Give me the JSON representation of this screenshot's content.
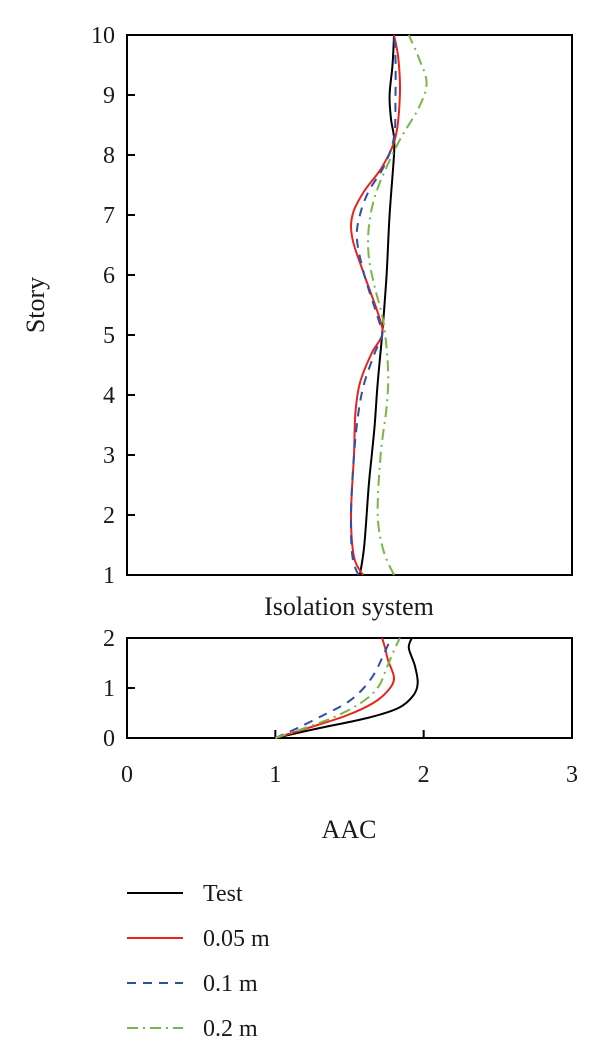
{
  "chart_data": [
    {
      "type": "line",
      "panel": "upper",
      "xlabel": "",
      "ylabel": "Story",
      "xlim": [
        0,
        3
      ],
      "ylim": [
        1,
        10
      ],
      "y_ticks": [
        "1",
        "2",
        "3",
        "4",
        "5",
        "6",
        "7",
        "8",
        "9",
        "10"
      ],
      "grid": false,
      "series": [
        {
          "name": "Test",
          "color": "#000000",
          "dash": "solid",
          "points": [
            [
              1.57,
              1
            ],
            [
              1.6,
              1.5
            ],
            [
              1.63,
              2.5
            ],
            [
              1.65,
              3
            ],
            [
              1.67,
              3.5
            ],
            [
              1.69,
              4.2
            ],
            [
              1.72,
              5
            ],
            [
              1.75,
              6
            ],
            [
              1.77,
              7
            ],
            [
              1.8,
              8
            ],
            [
              1.8,
              8.3
            ],
            [
              1.78,
              8.6
            ],
            [
              1.77,
              9
            ],
            [
              1.79,
              9.5
            ],
            [
              1.8,
              10
            ]
          ]
        },
        {
          "name": "0.05 m",
          "color": "#e8241c",
          "dash": "solid",
          "points": [
            [
              1.59,
              1
            ],
            [
              1.53,
              1.3
            ],
            [
              1.51,
              2
            ],
            [
              1.53,
              3
            ],
            [
              1.54,
              3.7
            ],
            [
              1.57,
              4.2
            ],
            [
              1.65,
              4.7
            ],
            [
              1.72,
              5
            ],
            [
              1.7,
              5.3
            ],
            [
              1.6,
              6
            ],
            [
              1.52,
              6.6
            ],
            [
              1.52,
              7
            ],
            [
              1.6,
              7.4
            ],
            [
              1.72,
              7.8
            ],
            [
              1.81,
              8.3
            ],
            [
              1.84,
              9
            ],
            [
              1.83,
              9.6
            ],
            [
              1.8,
              10
            ]
          ]
        },
        {
          "name": "0.1 m",
          "color": "#2d4fa8",
          "dash": "9 7",
          "points": [
            [
              1.56,
              1
            ],
            [
              1.52,
              1.3
            ],
            [
              1.51,
              2
            ],
            [
              1.53,
              3
            ],
            [
              1.56,
              3.7
            ],
            [
              1.6,
              4.2
            ],
            [
              1.67,
              4.7
            ],
            [
              1.72,
              5
            ],
            [
              1.69,
              5.3
            ],
            [
              1.6,
              6
            ],
            [
              1.55,
              6.6
            ],
            [
              1.57,
              7
            ],
            [
              1.63,
              7.4
            ],
            [
              1.73,
              7.8
            ],
            [
              1.8,
              8.3
            ],
            [
              1.81,
              9
            ],
            [
              1.81,
              9.6
            ],
            [
              1.8,
              10
            ]
          ]
        },
        {
          "name": "0.2 m",
          "color": "#7ab648",
          "dash": "11 5 2 5",
          "points": [
            [
              1.8,
              1
            ],
            [
              1.73,
              1.4
            ],
            [
              1.69,
              2
            ],
            [
              1.71,
              3
            ],
            [
              1.75,
              3.8
            ],
            [
              1.76,
              4.4
            ],
            [
              1.73,
              5.2
            ],
            [
              1.67,
              5.8
            ],
            [
              1.63,
              6.3
            ],
            [
              1.63,
              6.8
            ],
            [
              1.67,
              7.3
            ],
            [
              1.75,
              7.8
            ],
            [
              1.85,
              8.3
            ],
            [
              1.97,
              8.8
            ],
            [
              2.02,
              9.2
            ],
            [
              1.97,
              9.6
            ],
            [
              1.9,
              10
            ]
          ]
        }
      ]
    },
    {
      "type": "line",
      "panel": "lower",
      "title": "Isolation system",
      "xlabel": "AAC",
      "ylabel": "",
      "xlim": [
        0,
        3
      ],
      "ylim": [
        0,
        2
      ],
      "x_ticks": [
        "0",
        "1",
        "2",
        "3"
      ],
      "y_ticks": [
        "0",
        "1",
        "2"
      ],
      "grid": false,
      "series": [
        {
          "name": "Test",
          "color": "#000000",
          "dash": "solid",
          "points": [
            [
              1.0,
              0
            ],
            [
              1.3,
              0.2
            ],
            [
              1.62,
              0.4
            ],
            [
              1.83,
              0.6
            ],
            [
              1.93,
              0.85
            ],
            [
              1.96,
              1.1
            ],
            [
              1.94,
              1.45
            ],
            [
              1.9,
              1.8
            ],
            [
              1.92,
              2
            ]
          ]
        },
        {
          "name": "0.05 m",
          "color": "#e8241c",
          "dash": "solid",
          "points": [
            [
              1.0,
              0
            ],
            [
              1.22,
              0.2
            ],
            [
              1.48,
              0.45
            ],
            [
              1.66,
              0.7
            ],
            [
              1.76,
              0.95
            ],
            [
              1.8,
              1.2
            ],
            [
              1.76,
              1.55
            ],
            [
              1.74,
              1.8
            ],
            [
              1.72,
              2
            ]
          ]
        },
        {
          "name": "0.1 m",
          "color": "#2d4fa8",
          "dash": "9 7",
          "points": [
            [
              1.0,
              0
            ],
            [
              1.15,
              0.2
            ],
            [
              1.32,
              0.45
            ],
            [
              1.48,
              0.7
            ],
            [
              1.58,
              0.95
            ],
            [
              1.66,
              1.25
            ],
            [
              1.72,
              1.6
            ],
            [
              1.78,
              2
            ]
          ]
        },
        {
          "name": "0.2 m",
          "color": "#7ab648",
          "dash": "11 5 2 5",
          "points": [
            [
              1.0,
              0
            ],
            [
              1.2,
              0.2
            ],
            [
              1.42,
              0.45
            ],
            [
              1.6,
              0.75
            ],
            [
              1.7,
              1.05
            ],
            [
              1.75,
              1.4
            ],
            [
              1.8,
              1.75
            ],
            [
              1.84,
              2
            ]
          ]
        }
      ]
    }
  ],
  "legend": {
    "placement": "bottom-left",
    "entries": [
      "Test",
      "0.05 m",
      "0.1 m",
      "0.2 m"
    ]
  }
}
